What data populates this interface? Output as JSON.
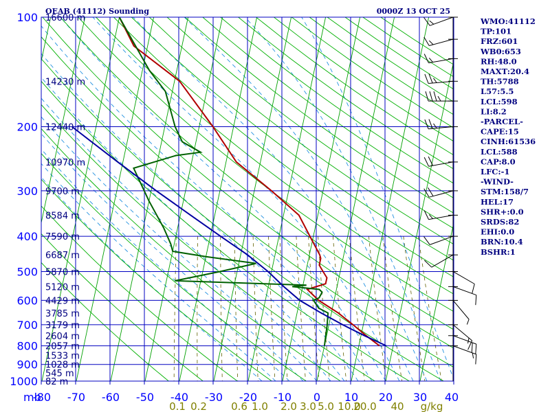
{
  "chart_data": {
    "type": "line",
    "title": "OEAB (41112) Sounding",
    "datetime": "0000Z 13 OCT 25",
    "pressure_axis": {
      "label": "mb",
      "ticks": [
        100,
        200,
        300,
        400,
        500,
        600,
        700,
        800,
        900,
        1000
      ],
      "range": [
        100,
        1000
      ]
    },
    "temperature_axis": {
      "ticks": [
        -80,
        -70,
        -60,
        -50,
        -40,
        -30,
        -20,
        -10,
        0,
        10,
        20,
        30,
        40
      ],
      "labels": [
        "-80",
        "-70",
        "-60",
        "-50",
        "-40",
        "-30",
        "-20",
        "-10",
        "0",
        "10",
        "20",
        "30",
        "40"
      ],
      "range": [
        -80,
        40
      ]
    },
    "mixing_ratio_labels": [
      "0.1",
      "0.2",
      "0.6",
      "1.0",
      "2.0",
      "3.0",
      "5.0",
      "10.0",
      "20.0",
      "40",
      "g/kg"
    ],
    "heights": [
      {
        "p": 100,
        "label": "16600 m"
      },
      {
        "p": 150,
        "label": "14230 m"
      },
      {
        "p": 200,
        "label": "12440 m"
      },
      {
        "p": 250,
        "label": "10970 m"
      },
      {
        "p": 300,
        "label": "9700 m"
      },
      {
        "p": 350,
        "label": "8584 m"
      },
      {
        "p": 400,
        "label": "7590 m"
      },
      {
        "p": 450,
        "label": "6687 m"
      },
      {
        "p": 500,
        "label": "5870 m"
      },
      {
        "p": 550,
        "label": "5120 m"
      },
      {
        "p": 600,
        "label": "4429 m"
      },
      {
        "p": 650,
        "label": "3785 m"
      },
      {
        "p": 700,
        "label": "3179 m"
      },
      {
        "p": 750,
        "label": "2604 m"
      },
      {
        "p": 800,
        "label": "2057 m"
      },
      {
        "p": 850,
        "label": "1533 m"
      },
      {
        "p": 900,
        "label": "1028 m"
      },
      {
        "p": 950,
        "label": "545 m"
      },
      {
        "p": 1000,
        "label": "82 m"
      }
    ],
    "series": [
      {
        "name": "Temperature",
        "color": "#b00000",
        "points": [
          [
            800,
            16.0
          ],
          [
            750,
            11.5
          ],
          [
            700,
            7.0
          ],
          [
            650,
            2.0
          ],
          [
            600,
            -4.5
          ],
          [
            560,
            -8.5
          ],
          [
            540,
            -3.5
          ],
          [
            520,
            -3.5
          ],
          [
            500,
            -5.0
          ],
          [
            480,
            -6.5
          ],
          [
            460,
            -6.5
          ],
          [
            450,
            -7.0
          ],
          [
            400,
            -11.0
          ],
          [
            350,
            -15.5
          ],
          [
            300,
            -25.0
          ],
          [
            250,
            -37.0
          ],
          [
            200,
            -46.0
          ],
          [
            150,
            -58.5
          ],
          [
            120,
            -74.0
          ],
          [
            100,
            -80.0
          ]
        ]
      },
      {
        "name": "Dewpoint",
        "color": "#006000",
        "points": [
          [
            800,
            0.0
          ],
          [
            700,
            -0.5
          ],
          [
            650,
            -1.0
          ],
          [
            630,
            -4.0
          ],
          [
            600,
            -6.0
          ],
          [
            590,
            -4.5
          ],
          [
            570,
            -4.0
          ],
          [
            560,
            -5.0
          ],
          [
            550,
            -13.0
          ],
          [
            545,
            -9.0
          ],
          [
            530,
            -47.5
          ],
          [
            500,
            -35.0
          ],
          [
            475,
            -25.0
          ],
          [
            455,
            -40.0
          ],
          [
            440,
            -50.0
          ],
          [
            420,
            -51.0
          ],
          [
            380,
            -54.0
          ],
          [
            320,
            -60.0
          ],
          [
            260,
            -66.5
          ],
          [
            240,
            -55.0
          ],
          [
            235,
            -48.0
          ],
          [
            220,
            -54.0
          ],
          [
            200,
            -57.0
          ],
          [
            160,
            -62.0
          ],
          [
            140,
            -68.0
          ],
          [
            120,
            -73.5
          ],
          [
            100,
            -80.0
          ]
        ]
      },
      {
        "name": "Parcel",
        "color": "#0000a0",
        "points": [
          [
            800,
            18.0
          ],
          [
            750,
            11.0
          ],
          [
            700,
            4.0
          ],
          [
            650,
            -3.0
          ],
          [
            600,
            -10.0
          ],
          [
            550,
            -15.5
          ],
          [
            500,
            -21.0
          ],
          [
            450,
            -28.0
          ],
          [
            400,
            -37.0
          ],
          [
            350,
            -47.0
          ],
          [
            300,
            -58.5
          ],
          [
            250,
            -71.5
          ],
          [
            200,
            -87.0
          ]
        ]
      }
    ],
    "wind_barbs": [
      {
        "p": 100,
        "dir": 250,
        "spd": 15
      },
      {
        "p": 115,
        "dir": 255,
        "spd": 15
      },
      {
        "p": 130,
        "dir": 260,
        "spd": 15
      },
      {
        "p": 150,
        "dir": 265,
        "spd": 25
      },
      {
        "p": 170,
        "dir": 270,
        "spd": 35
      },
      {
        "p": 200,
        "dir": 265,
        "spd": 25
      },
      {
        "p": 250,
        "dir": 260,
        "spd": 20
      },
      {
        "p": 300,
        "dir": 255,
        "spd": 20
      },
      {
        "p": 350,
        "dir": 260,
        "spd": 15
      },
      {
        "p": 400,
        "dir": 250,
        "spd": 10
      },
      {
        "p": 450,
        "dir": 240,
        "spd": 10
      },
      {
        "p": 500,
        "dir": 120,
        "spd": 10
      },
      {
        "p": 550,
        "dir": 110,
        "spd": 10
      },
      {
        "p": 600,
        "dir": 140,
        "spd": 5
      },
      {
        "p": 700,
        "dir": 130,
        "spd": 15
      },
      {
        "p": 750,
        "dir": 110,
        "spd": 20
      },
      {
        "p": 800,
        "dir": 110,
        "spd": 15
      }
    ],
    "indices": [
      "WMO:41112",
      "TP:101",
      "FRZ:601",
      "WB0:653",
      "RH:48.0",
      "MAXT:20.4",
      "TH:5788",
      "L57:5.5",
      "LCL:598",
      "LI:8.2",
      "-PARCEL-",
      "CAPE:15",
      "CINH:61536",
      "LCL:588",
      "CAP:8.0",
      "LFC:-1",
      "-WIND-",
      "STM:158/7",
      "HEL:17",
      "SHR+:0.0",
      "SRDS:82",
      "EHI:0.0",
      "BRN:10.4",
      "BSHR:1"
    ]
  }
}
